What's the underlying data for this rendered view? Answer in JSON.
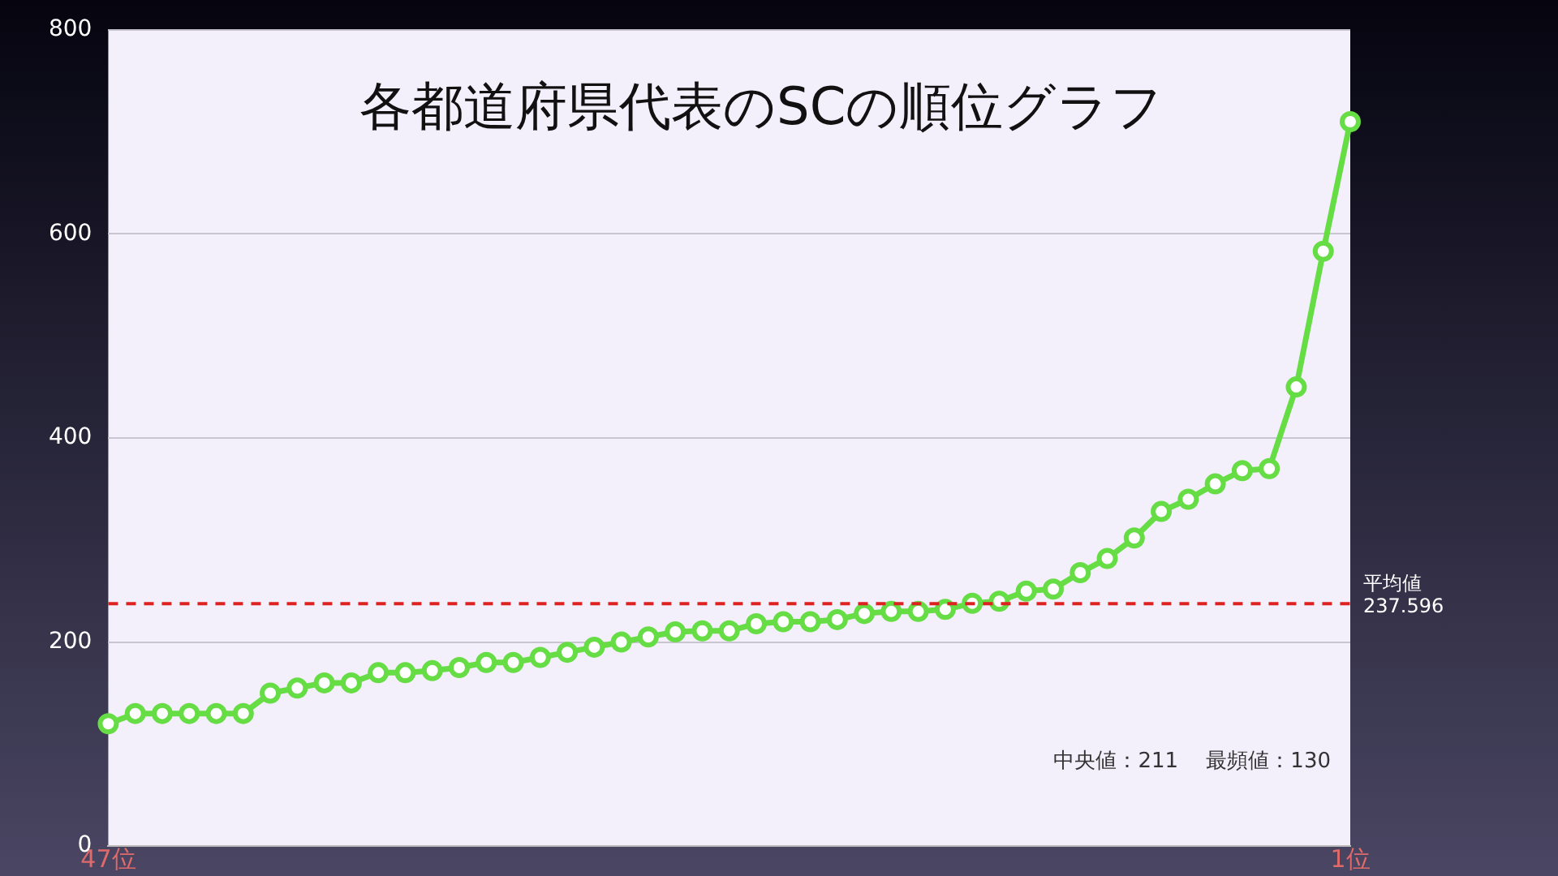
{
  "chart_data": {
    "type": "line",
    "title": "各都道府県代表のSCの順位グラフ",
    "categories": [
      "47位",
      null,
      null,
      null,
      null,
      null,
      null,
      null,
      null,
      null,
      null,
      null,
      null,
      null,
      null,
      null,
      null,
      null,
      null,
      null,
      null,
      null,
      null,
      null,
      null,
      null,
      null,
      null,
      null,
      null,
      null,
      null,
      null,
      null,
      null,
      null,
      null,
      null,
      null,
      null,
      null,
      null,
      null,
      null,
      null,
      null,
      "1位"
    ],
    "series": [
      {
        "color": "#66dd44",
        "values": [
          120,
          130,
          130,
          130,
          130,
          130,
          150,
          155,
          160,
          160,
          170,
          170,
          172,
          175,
          180,
          180,
          185,
          190,
          195,
          200,
          205,
          210,
          211,
          211,
          218,
          220,
          220,
          222,
          228,
          230,
          230,
          232,
          238,
          240,
          250,
          252,
          268,
          282,
          302,
          328,
          340,
          355,
          368,
          370,
          450,
          583,
          710
        ]
      }
    ],
    "ylim": [
      0,
      800
    ],
    "yticks": [
      0,
      200,
      400,
      600,
      800
    ],
    "grid": "y",
    "legend": false,
    "marker": "circle",
    "line_style": "solid",
    "ref_lines": [
      {
        "axis": "y",
        "value": 237.596,
        "label": "平均値\n237.596",
        "color": "#dd2222",
        "line_style": "dashed"
      }
    ],
    "annotations": [
      "中央値：211　 最頻値：130"
    ]
  }
}
